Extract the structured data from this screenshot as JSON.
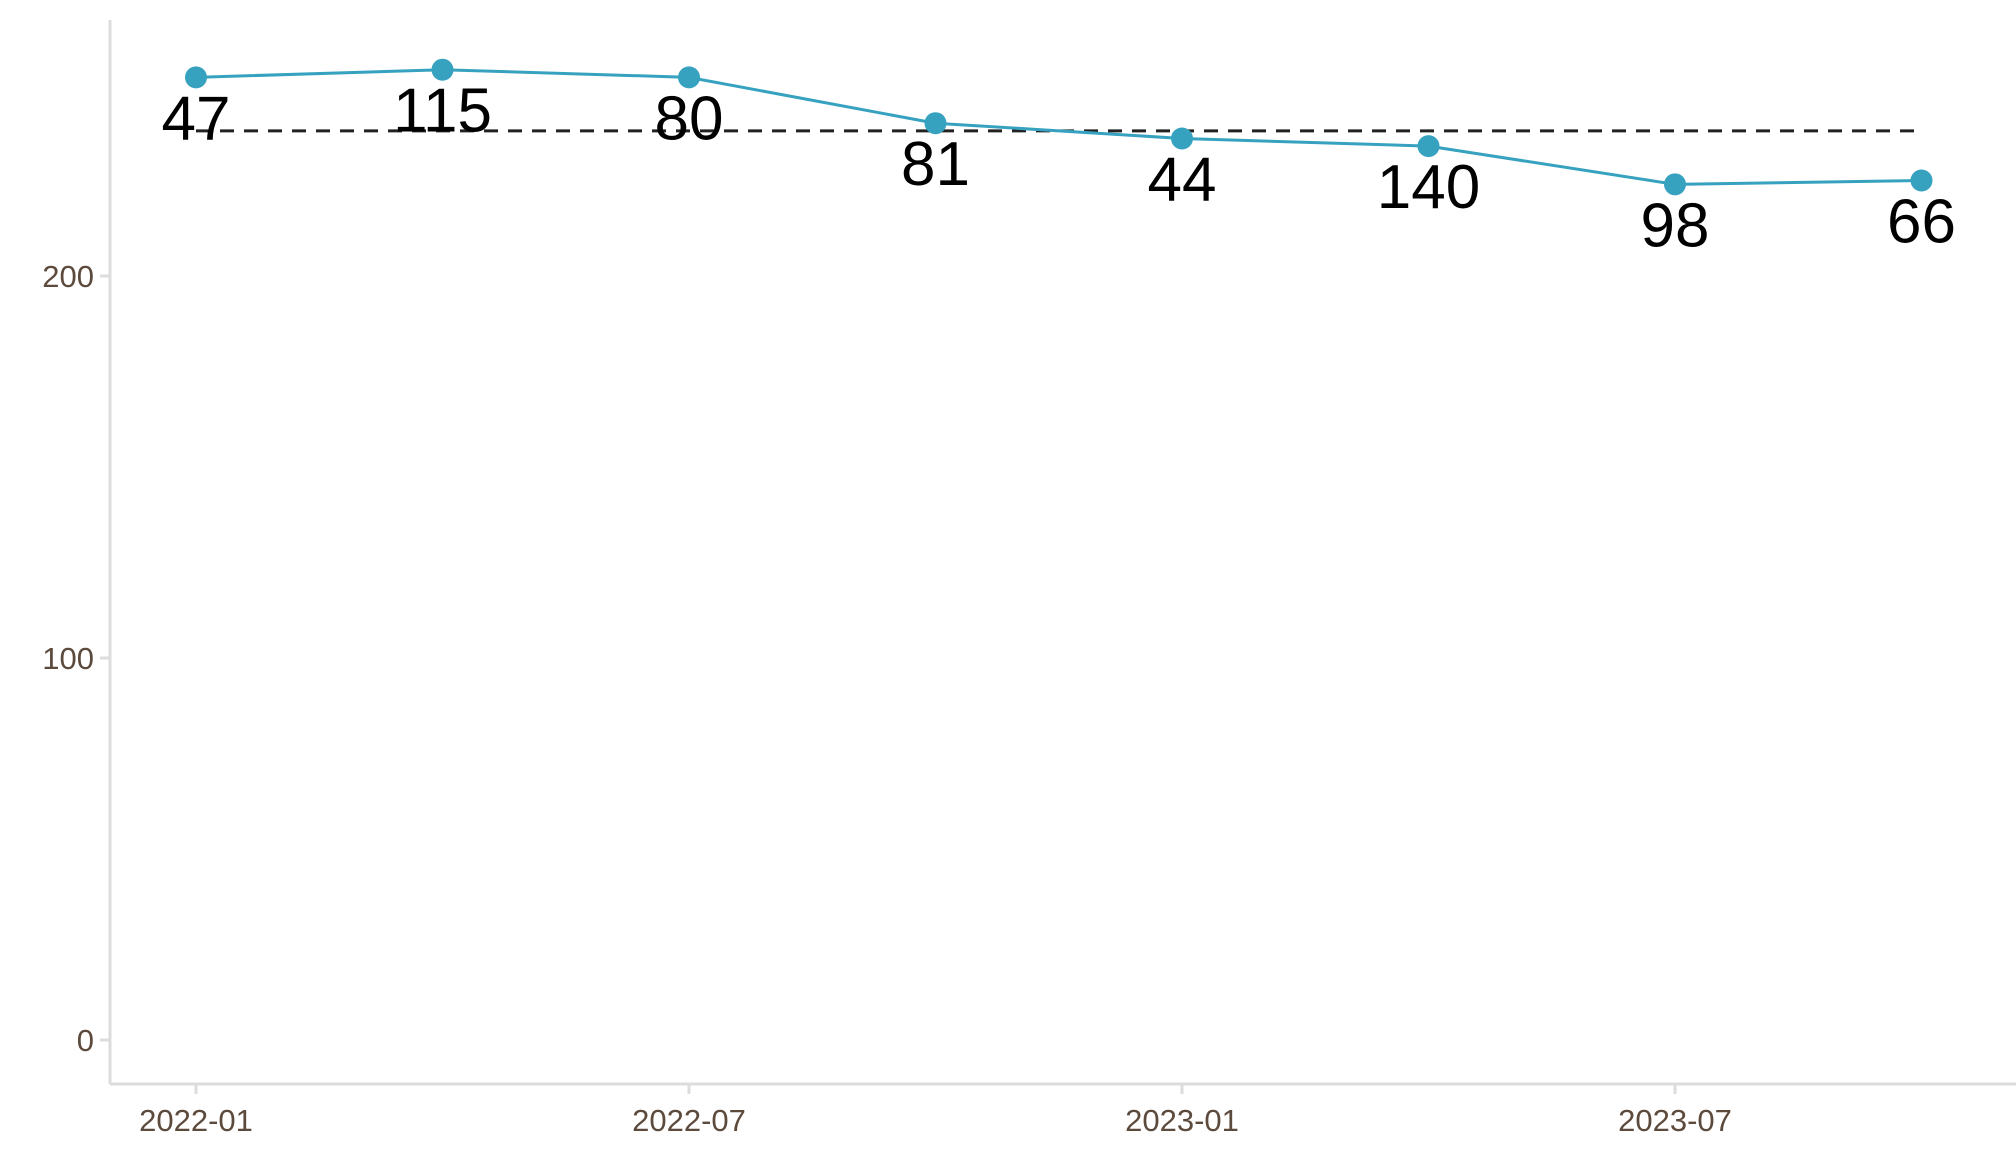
{
  "chart_data": {
    "type": "line",
    "title": "",
    "xlabel": "",
    "ylabel": "",
    "x": [
      "2022-01",
      "2022-04",
      "2022-07",
      "2022-10",
      "2023-01",
      "2023-04",
      "2023-07",
      "2023-10"
    ],
    "series": [
      {
        "values": [
          252,
          254,
          252,
          240,
          236,
          234,
          224,
          225
        ],
        "point_labels": [
          "47",
          "115",
          "80",
          "81",
          "44",
          "140",
          "98",
          "66"
        ],
        "color": "#36a2c0"
      }
    ],
    "reference_line": {
      "y": 238,
      "style": "dashed",
      "color": "#222222"
    },
    "ylim": [
      -12,
      267
    ],
    "yticks": [
      0,
      100,
      200
    ],
    "ytick_labels": [
      "0",
      "100",
      "200"
    ],
    "xticks": [
      "2022-01",
      "2022-07",
      "2023-01",
      "2023-07"
    ],
    "xtick_labels": [
      "2022-01",
      "2022-07",
      "2023-01",
      "2023-07"
    ],
    "grid": false,
    "legend": "none",
    "axis_color": "#dcdcdc",
    "tick_label_color": "#5c4a3d"
  }
}
